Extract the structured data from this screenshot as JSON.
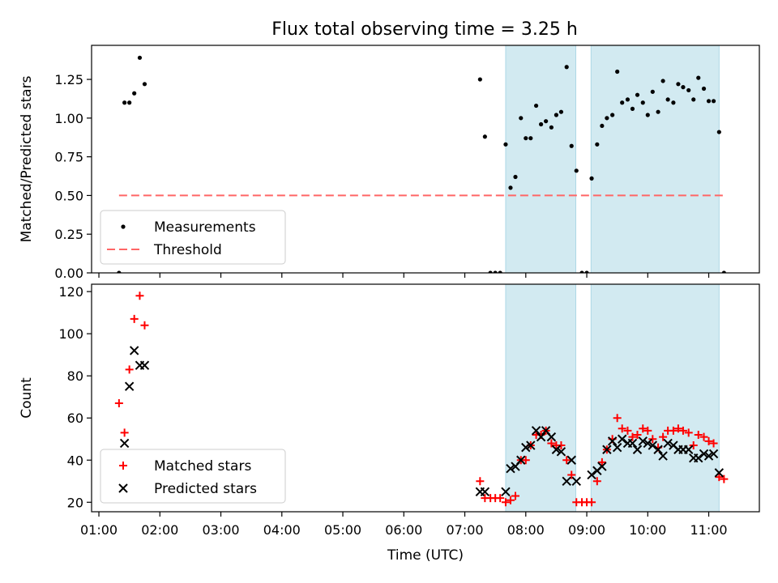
{
  "title": "Flux total observing time = 3.25 h",
  "colors": {
    "band": "#add8e6",
    "threshold": "#ff6666",
    "measure": "#000000",
    "matched": "#ff0000",
    "predicted": "#000000"
  },
  "chart_data": [
    {
      "type": "scatter",
      "ylabel": "Matched/Predicted stars",
      "ylim": [
        0,
        1.47
      ],
      "yticks": [
        0,
        0.25,
        0.5,
        0.75,
        1.0,
        1.25
      ],
      "ytick_labels": [
        "0.00",
        "0.25",
        "0.50",
        "0.75",
        "1.00",
        "1.25"
      ],
      "xlim": [
        0.88,
        11.83
      ],
      "bands": [
        [
          7.67,
          8.82
        ],
        [
          9.07,
          11.17
        ]
      ],
      "threshold": {
        "y": 0.5,
        "x": [
          1.33,
          11.25
        ]
      },
      "legend": {
        "position": "lower-left",
        "measurements": "Measurements",
        "threshold": "Threshold"
      },
      "series": [
        {
          "name": "Measurements",
          "x": [
            1.33,
            1.42,
            1.5,
            1.58,
            1.67,
            1.75,
            7.25,
            7.33,
            7.42,
            7.5,
            7.58,
            7.67,
            7.75,
            7.83,
            7.92,
            8.0,
            8.08,
            8.17,
            8.25,
            8.33,
            8.42,
            8.5,
            8.58,
            8.67,
            8.75,
            8.83,
            8.92,
            9.0,
            9.08,
            9.17,
            9.25,
            9.33,
            9.42,
            9.5,
            9.58,
            9.67,
            9.75,
            9.83,
            9.92,
            10.0,
            10.08,
            10.17,
            10.25,
            10.33,
            10.42,
            10.5,
            10.58,
            10.67,
            10.75,
            10.83,
            10.92,
            11.0,
            11.08,
            11.17,
            11.25
          ],
          "y": [
            0.0,
            1.1,
            1.1,
            1.16,
            1.39,
            1.22,
            1.25,
            0.88,
            0.0,
            0.0,
            0.0,
            0.83,
            0.55,
            0.62,
            1.0,
            0.87,
            0.87,
            1.08,
            0.96,
            0.98,
            0.94,
            1.02,
            1.04,
            1.33,
            0.82,
            0.66,
            0.0,
            0.0,
            0.61,
            0.83,
            0.95,
            1.0,
            1.02,
            1.3,
            1.1,
            1.12,
            1.06,
            1.15,
            1.1,
            1.02,
            1.17,
            1.04,
            1.24,
            1.12,
            1.1,
            1.22,
            1.2,
            1.18,
            1.12,
            1.26,
            1.19,
            1.11,
            1.11,
            0.91,
            0.0
          ]
        }
      ]
    },
    {
      "type": "scatter",
      "xlabel": "Time (UTC)",
      "ylabel": "Count",
      "ylim": [
        15.5,
        123.5
      ],
      "yticks": [
        20,
        40,
        60,
        80,
        100,
        120
      ],
      "xlim": [
        0.88,
        11.83
      ],
      "xticks": [
        1,
        2,
        3,
        4,
        5,
        6,
        7,
        8,
        9,
        10,
        11
      ],
      "xtick_labels": [
        "01:00",
        "02:00",
        "03:00",
        "04:00",
        "05:00",
        "06:00",
        "07:00",
        "08:00",
        "09:00",
        "10:00",
        "11:00"
      ],
      "bands": [
        [
          7.67,
          8.82
        ],
        [
          9.07,
          11.17
        ]
      ],
      "legend": {
        "position": "lower-left",
        "matched": "Matched stars",
        "predicted": "Predicted stars"
      },
      "series": [
        {
          "name": "Matched stars",
          "x": [
            1.33,
            1.42,
            1.5,
            1.58,
            1.67,
            1.75,
            7.25,
            7.33,
            7.42,
            7.5,
            7.58,
            7.67,
            7.75,
            7.83,
            7.92,
            8.0,
            8.08,
            8.17,
            8.25,
            8.33,
            8.42,
            8.5,
            8.58,
            8.67,
            8.75,
            8.83,
            8.92,
            9.0,
            9.08,
            9.17,
            9.25,
            9.33,
            9.42,
            9.5,
            9.58,
            9.67,
            9.75,
            9.83,
            9.92,
            10.0,
            10.08,
            10.17,
            10.25,
            10.33,
            10.42,
            10.5,
            10.58,
            10.67,
            10.75,
            10.83,
            10.92,
            11.0,
            11.08,
            11.17,
            11.25
          ],
          "y": [
            67,
            53,
            83,
            107,
            118,
            104,
            30,
            22,
            22,
            22,
            22,
            20,
            21,
            23,
            40,
            40,
            47,
            52,
            52,
            54,
            48,
            47,
            47,
            40,
            33,
            20,
            20,
            20,
            20,
            30,
            39,
            45,
            50,
            60,
            55,
            54,
            51,
            52,
            55,
            54,
            50,
            46,
            51,
            54,
            54,
            55,
            54,
            53,
            47,
            52,
            51,
            49,
            48,
            32,
            31
          ]
        },
        {
          "name": "Predicted stars",
          "x": [
            1.42,
            1.5,
            1.58,
            1.67,
            1.75,
            7.25,
            7.33,
            7.67,
            7.75,
            7.83,
            7.92,
            8.0,
            8.08,
            8.17,
            8.25,
            8.33,
            8.42,
            8.5,
            8.58,
            8.67,
            8.75,
            8.83,
            9.08,
            9.17,
            9.25,
            9.33,
            9.42,
            9.5,
            9.58,
            9.67,
            9.75,
            9.83,
            9.92,
            10.0,
            10.08,
            10.17,
            10.25,
            10.33,
            10.42,
            10.5,
            10.58,
            10.67,
            10.75,
            10.83,
            10.92,
            11.0,
            11.08,
            11.17
          ],
          "y": [
            48,
            75,
            92,
            85,
            85,
            25,
            25,
            25,
            36,
            37,
            40,
            46,
            47,
            54,
            51,
            54,
            51,
            45,
            44,
            30,
            40,
            30,
            33,
            35,
            37,
            45,
            49,
            46,
            50,
            48,
            48,
            45,
            49,
            48,
            47,
            45,
            42,
            48,
            47,
            45,
            45,
            45,
            41,
            41,
            43,
            42,
            43,
            34
          ]
        }
      ]
    }
  ]
}
